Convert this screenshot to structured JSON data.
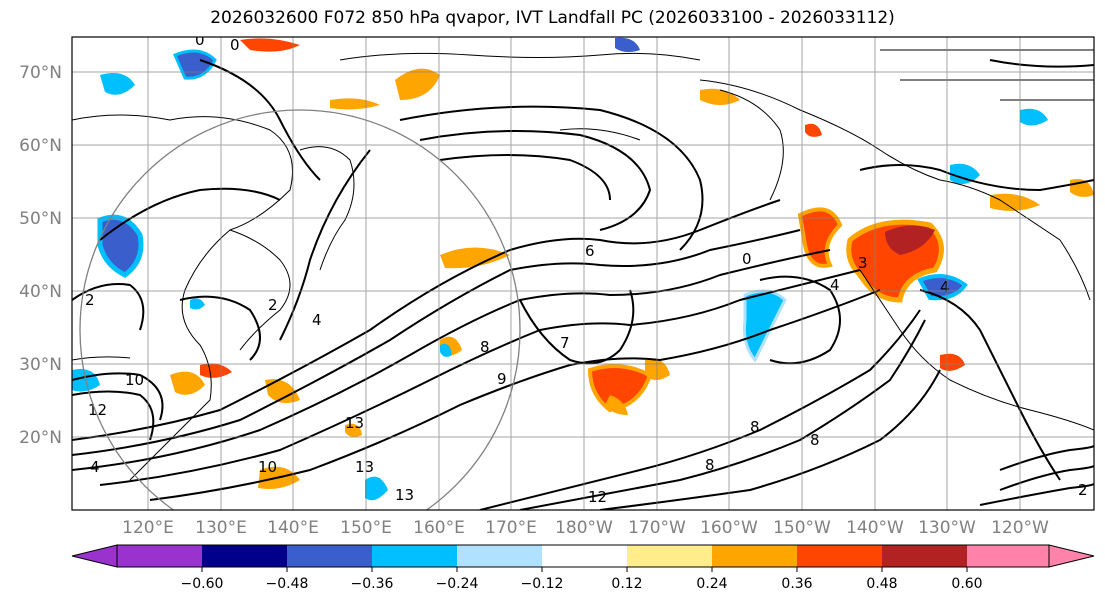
{
  "title": "2026032600 F072 850 hPa qvapor, IVT Landfall PC (2026033100 - 2026033112)",
  "lat_labels": [
    "70°N",
    "60°N",
    "50°N",
    "40°N",
    "30°N",
    "20°N"
  ],
  "lon_labels": [
    "120°E",
    "130°E",
    "140°E",
    "150°E",
    "160°E",
    "170°E",
    "180°W",
    "170°W",
    "160°W",
    "150°W",
    "140°W",
    "130°W",
    "120°W"
  ],
  "colorbar": {
    "colors": [
      "#9a32cd",
      "#00008b",
      "#3a5fcd",
      "#00bfff",
      "#b0e2ff",
      "#ffffff",
      "#ffec8b",
      "#ffa500",
      "#ff4500",
      "#b22222",
      "#ff82ab"
    ],
    "tick_labels": [
      "−0.60",
      "−0.48",
      "−0.36",
      "−0.24",
      "−0.12",
      "0.12",
      "0.24",
      "0.36",
      "0.48",
      "0.60"
    ]
  },
  "contour_labels": [
    "13",
    "12",
    "10",
    "8",
    "8",
    "7",
    "6",
    "4",
    "3",
    "2",
    "0",
    "13",
    "4",
    "2",
    "2",
    "0",
    "0",
    "4",
    "10",
    "12",
    "4",
    "13",
    "8",
    "8",
    "9"
  ],
  "colors": {
    "grid": "#808080",
    "coast": "#000000",
    "contour": "#000000"
  }
}
